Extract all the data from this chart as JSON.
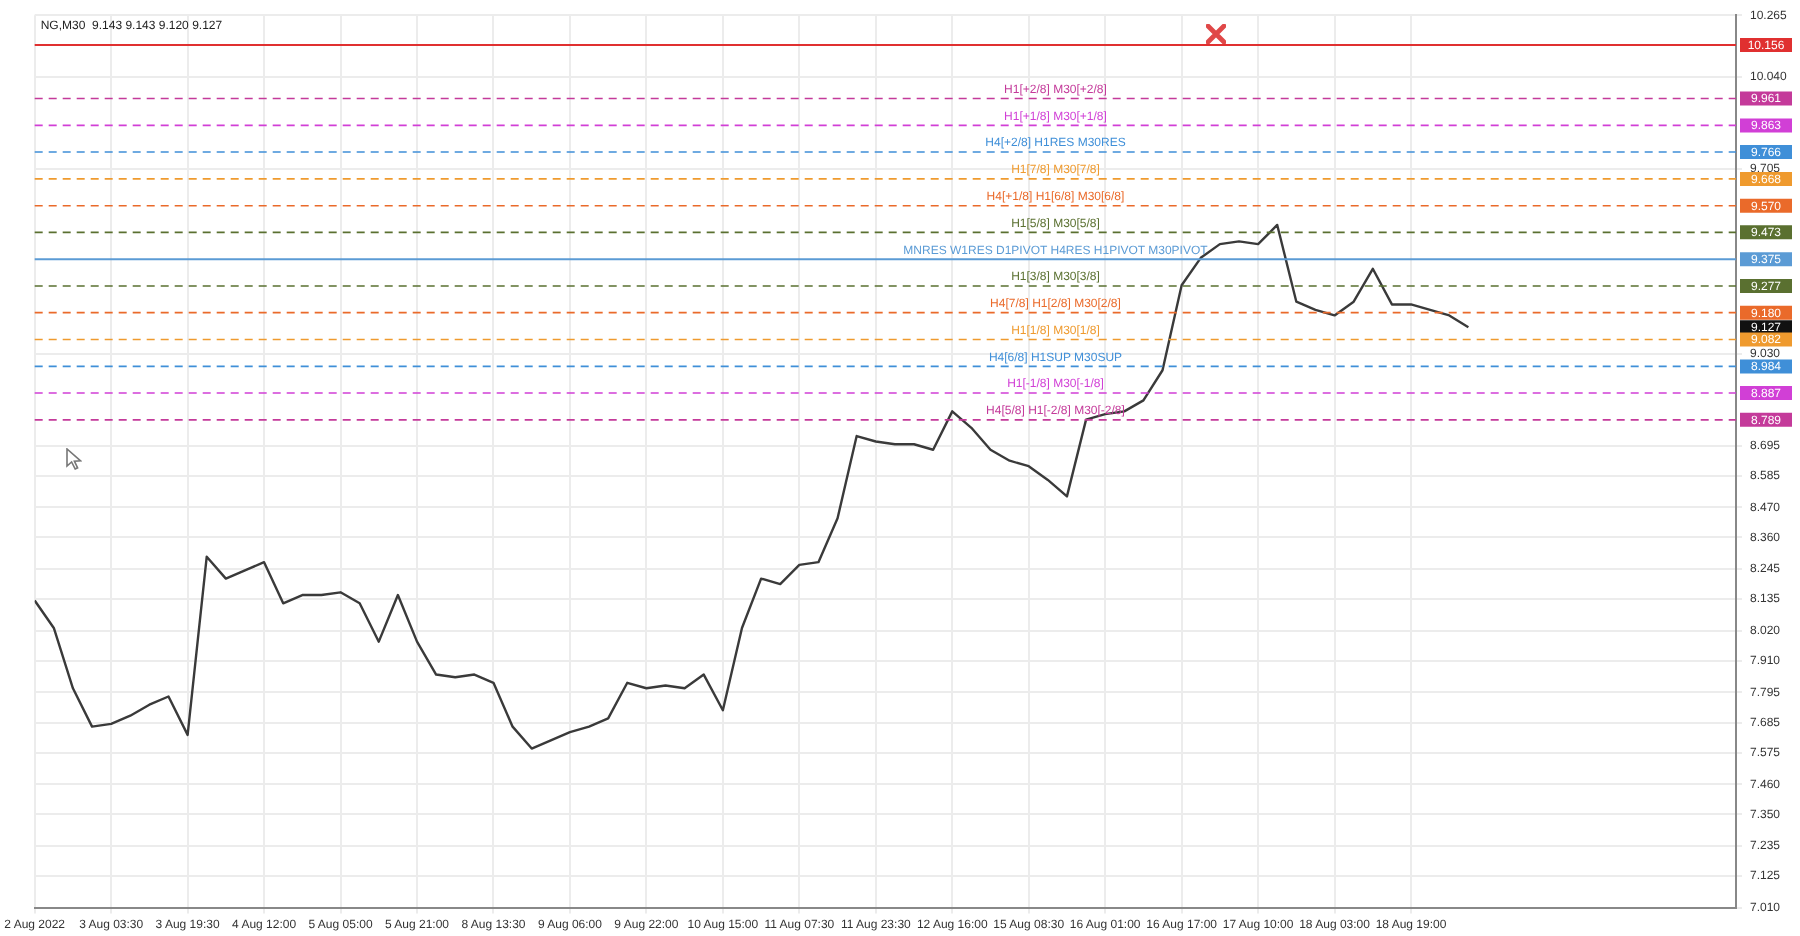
{
  "chart_data": {
    "type": "line",
    "title": "NG,M30  9.143 9.143 9.120 9.127",
    "categories": [
      "2 Aug 2022",
      null,
      null,
      null,
      "3 Aug 03:30",
      null,
      null,
      null,
      "3 Aug 19:30",
      null,
      null,
      null,
      "4 Aug 12:00",
      null,
      null,
      null,
      "5 Aug 05:00",
      null,
      null,
      null,
      "5 Aug 21:00",
      null,
      null,
      null,
      "8 Aug 13:30",
      null,
      null,
      null,
      "9 Aug 06:00",
      null,
      null,
      null,
      "9 Aug 22:00",
      null,
      null,
      null,
      "10 Aug 15:00",
      null,
      null,
      null,
      "11 Aug 07:30",
      null,
      null,
      null,
      "11 Aug 23:30",
      null,
      null,
      null,
      "12 Aug 16:00",
      null,
      null,
      null,
      "15 Aug 08:30",
      null,
      null,
      null,
      "16 Aug 01:00",
      null,
      null,
      null,
      "16 Aug 17:00",
      null,
      null,
      null,
      "17 Aug 10:00",
      null,
      null,
      null,
      "18 Aug 03:00",
      null,
      null,
      null,
      "18 Aug 19:00",
      null,
      null,
      null
    ],
    "series": [
      {
        "color": "#3a3a3a",
        "values": [
          8.13,
          8.03,
          7.81,
          7.67,
          7.68,
          7.71,
          7.75,
          7.78,
          7.64,
          8.29,
          8.21,
          8.24,
          8.27,
          8.12,
          8.15,
          8.15,
          8.16,
          8.12,
          7.98,
          8.15,
          7.98,
          7.86,
          7.85,
          7.86,
          7.83,
          7.67,
          7.59,
          7.62,
          7.65,
          7.67,
          7.7,
          7.83,
          7.81,
          7.82,
          7.81,
          7.86,
          7.73,
          8.03,
          8.21,
          8.19,
          8.26,
          8.27,
          8.43,
          8.73,
          8.71,
          8.7,
          8.7,
          8.68,
          8.82,
          8.76,
          8.68,
          8.64,
          8.62,
          8.57,
          8.51,
          8.79,
          8.81,
          8.82,
          8.86,
          8.97,
          9.28,
          9.38,
          9.43,
          9.44,
          9.43,
          9.5,
          9.22,
          9.19,
          9.17,
          9.22,
          9.34,
          9.21,
          9.21,
          9.19,
          9.17,
          9.127
        ]
      }
    ],
    "ylim": [
      7.01,
      10.265
    ],
    "yticks": [
      {
        "value": 7.01,
        "label": "7.010"
      },
      7.125,
      7.235,
      {
        "value": 7.35,
        "label": "7.350"
      },
      {
        "value": 7.46,
        "label": "7.460"
      },
      7.575,
      7.685,
      7.795,
      {
        "value": 7.91,
        "label": "7.910"
      },
      {
        "value": 8.02,
        "label": "8.020"
      },
      8.135,
      8.245,
      {
        "value": 8.36,
        "label": "8.360"
      },
      {
        "value": 8.47,
        "label": "8.470"
      },
      8.585,
      8.695,
      {
        "value": 9.03,
        "label": "9.030"
      },
      9.705,
      {
        "value": 10.04,
        "label": "10.040"
      },
      10.265
    ],
    "ref_lines": [
      {
        "axis": "y",
        "value": 10.156,
        "color": "#e03030",
        "line_style": "solid"
      },
      {
        "axis": "y",
        "value": 9.961,
        "label": "H1[+2/8] M30[+2/8]",
        "color": "#c43a9a",
        "line_style": "dashed"
      },
      {
        "axis": "y",
        "value": 9.863,
        "label": "H1[+1/8] M30[+1/8]",
        "color": "#d13fd6",
        "line_style": "dashed"
      },
      {
        "axis": "y",
        "value": 9.766,
        "label": "H4[+2/8] H1RES M30RES",
        "color": "#3f8fd8",
        "line_style": "dashed"
      },
      {
        "axis": "y",
        "value": 9.668,
        "label": "H1[7/8] M30[7/8]",
        "color": "#ef9a2e",
        "line_style": "dashed"
      },
      {
        "axis": "y",
        "value": 9.57,
        "label": "H4[+1/8] H1[6/8] M30[6/8]",
        "color": "#ea6a2a",
        "line_style": "dashed"
      },
      {
        "axis": "y",
        "value": 9.473,
        "label": "H1[5/8] M30[5/8]",
        "color": "#5a7030",
        "line_style": "dashed"
      },
      {
        "axis": "y",
        "value": 9.375,
        "label": "MNRES W1RES D1PIVOT H4RES H1PIVOT M30PIVOT",
        "color": "#5b9bd5",
        "line_style": "solid"
      },
      {
        "axis": "y",
        "value": 9.277,
        "label": "H1[3/8] M30[3/8]",
        "color": "#5a7030",
        "line_style": "dashed"
      },
      {
        "axis": "y",
        "value": 9.18,
        "label": "H4[7/8] H1[2/8] M30[2/8]",
        "color": "#ea6a2a",
        "line_style": "dashed"
      },
      {
        "axis": "y",
        "value": 9.082,
        "label": "H1[1/8] M30[1/8]",
        "color": "#ef9a2e",
        "line_style": "dashed"
      },
      {
        "axis": "y",
        "value": 8.984,
        "label": "H4[6/8] H1SUP M30SUP",
        "color": "#3f8fd8",
        "line_style": "dashed"
      },
      {
        "axis": "y",
        "value": 8.887,
        "label": "H1[-1/8] M30[-1/8]",
        "color": "#d13fd6",
        "line_style": "dashed"
      },
      {
        "axis": "y",
        "value": 8.789,
        "label": "H4[5/8] H1[-2/8] M30[-2/8]",
        "color": "#c43a9a",
        "line_style": "dashed"
      }
    ],
    "annotations": [
      "9.127",
      "10.156",
      "9.961",
      "9.863",
      "9.766",
      "9.668",
      "9.570",
      "9.473",
      "9.375",
      "9.277",
      "9.180",
      "9.082",
      "8.984",
      "8.887",
      "8.789"
    ],
    "grid": true,
    "legend": false,
    "marker": "none",
    "line_style": "solid"
  }
}
